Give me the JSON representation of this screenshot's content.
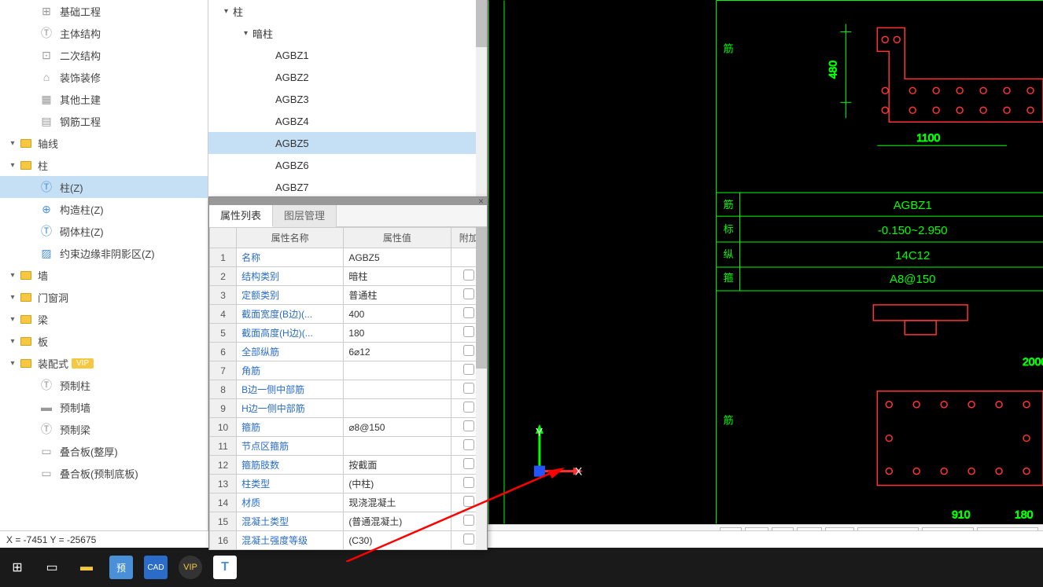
{
  "left_tree": {
    "items": [
      {
        "label": "基础工程",
        "icon": "grid",
        "indent": 1
      },
      {
        "label": "主体结构",
        "icon": "T",
        "indent": 1
      },
      {
        "label": "二次结构",
        "icon": "binary",
        "indent": 1
      },
      {
        "label": "装饰装修",
        "icon": "house",
        "indent": 1
      },
      {
        "label": "其他土建",
        "icon": "squares",
        "indent": 1
      },
      {
        "label": "钢筋工程",
        "icon": "grid2",
        "indent": 1
      }
    ],
    "headers": [
      {
        "label": "轴线",
        "expanded": true
      },
      {
        "label": "柱",
        "expanded": true
      }
    ],
    "column_items": [
      {
        "label": "柱(Z)",
        "icon": "T",
        "selected": true
      },
      {
        "label": "构造柱(Z)",
        "icon": "brace"
      },
      {
        "label": "砌体柱(Z)",
        "icon": "T2"
      },
      {
        "label": "约束边缘非阴影区(Z)",
        "icon": "diag"
      }
    ],
    "more_headers": [
      {
        "label": "墙"
      },
      {
        "label": "门窗洞"
      },
      {
        "label": "梁"
      },
      {
        "label": "板"
      }
    ],
    "prefab": {
      "label": "装配式",
      "vip": "VIP",
      "items": [
        {
          "label": "预制柱"
        },
        {
          "label": "预制墙"
        },
        {
          "label": "预制梁"
        },
        {
          "label": "叠合板(整厚)"
        },
        {
          "label": "叠合板(预制底板)"
        }
      ]
    }
  },
  "middle_tree": {
    "root": "柱",
    "group": "暗柱",
    "items": [
      "AGBZ1",
      "AGBZ2",
      "AGBZ3",
      "AGBZ4",
      "AGBZ5",
      "AGBZ6",
      "AGBZ7"
    ],
    "selected_index": 4
  },
  "property_panel": {
    "tabs": [
      {
        "label": "属性列表",
        "active": true
      },
      {
        "label": "图层管理",
        "active": false
      }
    ],
    "columns": [
      "属性名称",
      "属性值",
      "附加"
    ],
    "rows": [
      {
        "n": 1,
        "name": "名称",
        "val": "AGBZ5",
        "extra": false
      },
      {
        "n": 2,
        "name": "结构类别",
        "val": "暗柱",
        "extra": true
      },
      {
        "n": 3,
        "name": "定额类别",
        "val": "普通柱",
        "extra": true
      },
      {
        "n": 4,
        "name": "截面宽度(B边)(...",
        "val": "400",
        "extra": true
      },
      {
        "n": 5,
        "name": "截面高度(H边)(...",
        "val": "180",
        "extra": true
      },
      {
        "n": 6,
        "name": "全部纵筋",
        "val": "6⌀12",
        "extra": true
      },
      {
        "n": 7,
        "name": "角筋",
        "val": "",
        "extra": true
      },
      {
        "n": 8,
        "name": "B边一侧中部筋",
        "val": "",
        "extra": true
      },
      {
        "n": 9,
        "name": "H边一侧中部筋",
        "val": "",
        "extra": true
      },
      {
        "n": 10,
        "name": "箍筋",
        "val": "⌀8@150",
        "extra": true
      },
      {
        "n": 11,
        "name": "节点区箍筋",
        "val": "",
        "extra": true
      },
      {
        "n": 12,
        "name": "箍筋肢数",
        "val": "按截面",
        "extra": true
      },
      {
        "n": 13,
        "name": "柱类型",
        "val": "(中柱)",
        "extra": true
      },
      {
        "n": 14,
        "name": "材质",
        "val": "现浇混凝土",
        "extra": true
      },
      {
        "n": 15,
        "name": "混凝土类型",
        "val": "(普通混凝土)",
        "extra": true
      },
      {
        "n": 16,
        "name": "混凝土强度等级",
        "val": "(C30)",
        "extra": true
      }
    ]
  },
  "cad": {
    "colors": {
      "bg": "#000000",
      "axis_green": "#00ff00",
      "annotation_red": "#ff3333",
      "dim_green": "#00ff00",
      "table_green": "#00ff00",
      "magenta": "#ff55ff"
    },
    "dims": {
      "d1": "480",
      "d2": "1100",
      "d3": "2000",
      "d4": "910",
      "d5": "180"
    },
    "table_rows": [
      {
        "left": "筋",
        "right": "AGBZ1"
      },
      {
        "left": "标",
        "right": "-0.150~2.950"
      },
      {
        "left": "纵",
        "right": "14C12"
      },
      {
        "left": "箍",
        "right": "A8@150"
      }
    ],
    "col_markers": [
      "筋",
      "筋"
    ],
    "axis_origin": {
      "y_label": "Y",
      "x_label": "X"
    }
  },
  "coord_bar": {
    "text": "X = -7451 Y = -25675"
  },
  "bottom_toolbar": {
    "hide_text": "隐藏：0",
    "btns": [
      {
        "label": "跨图层选择"
      },
      {
        "label": "折线选择"
      },
      {
        "label": "按鼠标左键"
      }
    ]
  }
}
